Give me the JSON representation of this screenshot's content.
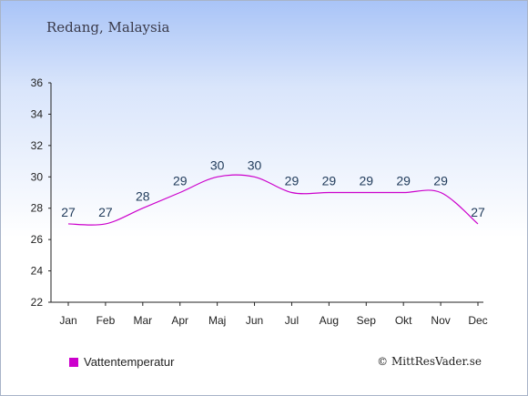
{
  "location": "Redang, Malaysia",
  "credit": "© MittResVader.se",
  "colors": {
    "series": "#cc00cc",
    "label": "#1f3a5a",
    "axis": "#222222"
  },
  "chart_data": {
    "type": "line",
    "categories": [
      "Jan",
      "Feb",
      "Mar",
      "Apr",
      "Maj",
      "Jun",
      "Jul",
      "Aug",
      "Sep",
      "Okt",
      "Nov",
      "Dec"
    ],
    "series": [
      {
        "name": "Vattentemperatur",
        "values": [
          27,
          27,
          28,
          29,
          30,
          30,
          29,
          29,
          29,
          29,
          29,
          27
        ]
      }
    ],
    "ylim": [
      22,
      36
    ],
    "yticks": [
      22,
      24,
      26,
      28,
      30,
      32,
      34,
      36
    ],
    "legend": "bottom-left",
    "grid": false
  }
}
